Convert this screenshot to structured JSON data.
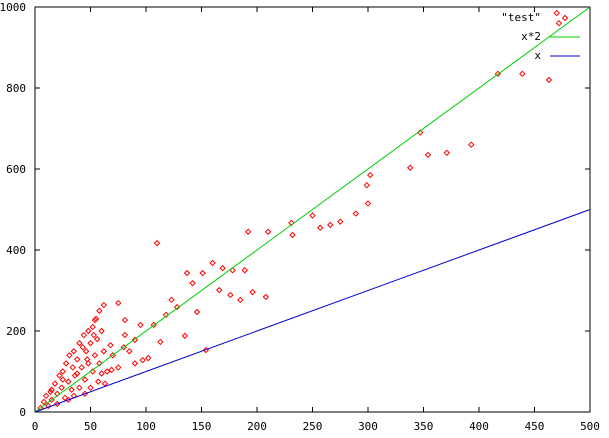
{
  "chart_data": {
    "type": "scatter",
    "legend": "top-right",
    "xlim": [
      0,
      500
    ],
    "ylim": [
      0,
      1000
    ],
    "xticks": [
      0,
      50,
      100,
      150,
      200,
      250,
      300,
      350,
      400,
      450,
      500
    ],
    "yticks": [
      0,
      200,
      400,
      600,
      800,
      1000
    ],
    "series": [
      {
        "name": "\"test\"",
        "color": "#ff0000",
        "style": "points",
        "x": [
          470,
          472,
          417,
          439,
          463,
          393,
          371,
          354,
          347,
          338,
          302,
          299,
          300,
          289,
          275,
          266,
          257,
          250,
          231,
          232,
          210,
          192,
          110,
          160,
          169,
          178,
          189,
          151,
          137,
          142,
          166,
          208,
          196,
          185,
          176,
          128,
          146,
          123,
          154,
          135,
          118,
          113,
          102,
          107,
          95,
          81,
          75,
          62,
          54,
          68,
          81,
          90,
          97,
          69,
          5,
          8,
          10,
          12,
          14,
          15,
          18,
          20,
          22,
          24,
          25,
          27,
          28,
          30,
          31,
          33,
          34,
          35,
          36,
          38,
          40,
          40,
          42,
          44,
          45,
          46,
          48,
          48,
          50,
          50,
          52,
          52,
          54,
          55,
          56,
          57,
          58,
          60,
          62,
          65,
          20,
          30,
          45,
          35,
          15,
          25,
          38,
          43,
          47,
          53,
          58,
          60,
          63,
          70,
          75,
          80,
          85,
          90
        ],
        "values": [
          985,
          960,
          835,
          835,
          820,
          660,
          640,
          635,
          690,
          603,
          585,
          560,
          515,
          490,
          470,
          462,
          455,
          485,
          467,
          437,
          445,
          445,
          417,
          368,
          355,
          350,
          350,
          343,
          343,
          318,
          301,
          284,
          296,
          277,
          289,
          259,
          247,
          277,
          153,
          188,
          240,
          173,
          133,
          215,
          215,
          227,
          269,
          264,
          227,
          165,
          190,
          178,
          128,
          104,
          10,
          25,
          40,
          15,
          50,
          30,
          70,
          45,
          90,
          60,
          100,
          35,
          120,
          75,
          140,
          55,
          110,
          150,
          90,
          130,
          170,
          60,
          110,
          190,
          80,
          150,
          200,
          120,
          60,
          170,
          210,
          100,
          140,
          230,
          180,
          75,
          120,
          200,
          150,
          100,
          20,
          30,
          45,
          40,
          55,
          80,
          95,
          160,
          130,
          190,
          250,
          95,
          70,
          140,
          110,
          160,
          150,
          120
        ]
      },
      {
        "name": "x*2",
        "color": "#00cc00",
        "style": "lines",
        "x": [
          0,
          500
        ],
        "values": [
          0,
          1000
        ]
      },
      {
        "name": "x",
        "color": "#0000cc",
        "style": "lines",
        "x": [
          0,
          500
        ],
        "values": [
          0,
          500
        ]
      }
    ]
  }
}
